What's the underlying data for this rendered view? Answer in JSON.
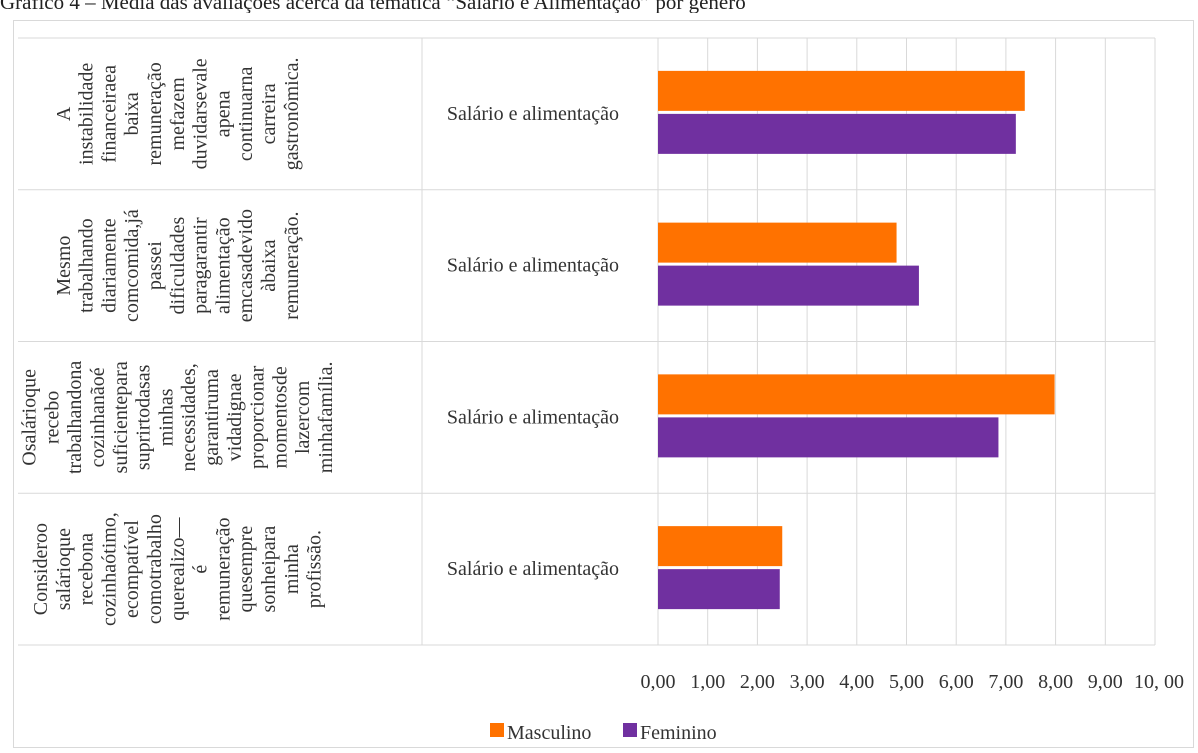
{
  "chart_data": {
    "type": "bar",
    "orientation": "horizontal",
    "title": "Gráfico 4 – Média das avaliações acerca da temática “Salário e Alimentação” por gênero",
    "groups": [
      {
        "statement": "A instabilidade financeiraea baixa remuneração mefazem duvidarsevale apena continuarna carreira gastronômica.",
        "statement_lines": [
          "A",
          "instabilidade",
          "financeiraea",
          "baixa",
          "remuneração",
          "mefazem",
          "duvidarsevale",
          "apena",
          "continuarna",
          "carreira",
          "gastronômica."
        ],
        "category": "Salário e alimentação"
      },
      {
        "statement": "Mesmo trabalhando diariamente comcomida,já passei dificuldades paragarantir alimentação emcasadevido àbaixa remuneração.",
        "statement_lines": [
          "Mesmo",
          "trabalhando",
          "diariamente",
          "comcomida,já",
          "passei",
          "dificuldades",
          "paragarantir",
          "alimentação",
          "emcasadevido",
          "àbaixa",
          "remuneração."
        ],
        "category": "Salário e alimentação"
      },
      {
        "statement": "Osalárioque recebo trabalhandona cozinhanãoé suficientepara suprirtodasas minhas necessidades, garantiruma vidadignae proporcionar momentosde lazercom minhafamília.",
        "statement_lines": [
          "Osalárioque",
          "recebo",
          "trabalhandona",
          "cozinhanãoé",
          "suficientepara",
          "suprirtodasas",
          "minhas",
          "necessidades,",
          "garantiruma",
          "vidadignae",
          "proporcionar",
          "momentosde",
          "lazercom",
          "minhafamília."
        ],
        "category": "Salário e alimentação"
      },
      {
        "statement": "Consideroo salárioque recebona cozinhaótimo, ecompatível comotrabalho querealizo— é remuneração quesempre sonheipara minha profissão.",
        "statement_lines": [
          "Consideroo",
          "salárioque",
          "recebona",
          "cozinhaótimo,",
          "ecompatível",
          "comotrabalho",
          "querealizo—",
          "é",
          "remuneração",
          "quesempre",
          "sonheipara",
          "minha",
          "profissão."
        ],
        "category": "Salário e alimentação"
      }
    ],
    "series": [
      {
        "name": "Masculino",
        "color": "#ff7200",
        "values": [
          7.38,
          4.8,
          7.98,
          2.5
        ]
      },
      {
        "name": "Feminino",
        "color": "#7030a0",
        "values": [
          7.2,
          5.25,
          6.85,
          2.45
        ]
      }
    ],
    "xlim": [
      0,
      10
    ],
    "xticks": [
      0,
      1,
      2,
      3,
      4,
      5,
      6,
      7,
      8,
      9,
      10
    ],
    "xtick_labels": [
      "0,00",
      "1,00",
      "2,00",
      "3,00",
      "4,00",
      "5,00",
      "6,00",
      "7,00",
      "8,00",
      "9,00",
      "10, 00"
    ],
    "grid": true,
    "legend_position": "bottom"
  }
}
